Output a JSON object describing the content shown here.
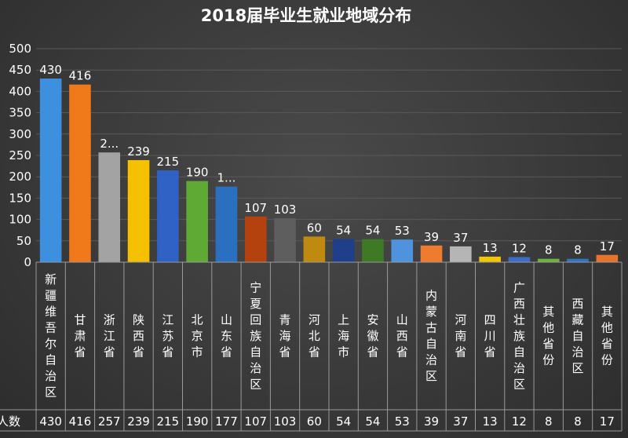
{
  "chart_data": {
    "type": "bar",
    "title": "2018届毕业生就业地域分布",
    "categories": [
      "新疆维吾尔自治区",
      "甘肃省",
      "浙江省",
      "陕西省",
      "江苏省",
      "北京市",
      "山东省",
      "宁夏回族自治区",
      "青海省",
      "河北省",
      "上海市",
      "安徽省",
      "山西省",
      "内蒙古自治区",
      "河南省",
      "四川省",
      "广西壮族自治区",
      "其他省份",
      "西藏自治区",
      "其他省份"
    ],
    "series": [
      {
        "name": "人数",
        "values": [
          430,
          416,
          257,
          239,
          215,
          190,
          177,
          107,
          103,
          60,
          54,
          54,
          53,
          39,
          37,
          13,
          12,
          8,
          8,
          17
        ]
      }
    ],
    "data_labels": [
      "430",
      "416",
      "2...",
      "239",
      "215",
      "190",
      "1...",
      "107",
      "103",
      "60",
      "54",
      "54",
      "53",
      "39",
      "37",
      "13",
      "12",
      "8",
      "8",
      "17"
    ],
    "row_header": "人数",
    "ylim": [
      0,
      500
    ],
    "yticks": [
      0,
      50,
      100,
      150,
      200,
      250,
      300,
      350,
      400,
      450,
      500
    ],
    "colors": [
      "#3d8fe0",
      "#f07a1a",
      "#a3a3a3",
      "#f5c000",
      "#2f62c4",
      "#5faa35",
      "#2a6fc0",
      "#b4420e",
      "#5e5e5e",
      "#c08a10",
      "#1f3f8a",
      "#3e7a25",
      "#4f93df",
      "#ee7b2e",
      "#b5b5b5",
      "#f2c600",
      "#3a6cc8",
      "#6bb33c",
      "#2e72c6",
      "#e8742a"
    ],
    "grid": true,
    "legend": "none"
  }
}
